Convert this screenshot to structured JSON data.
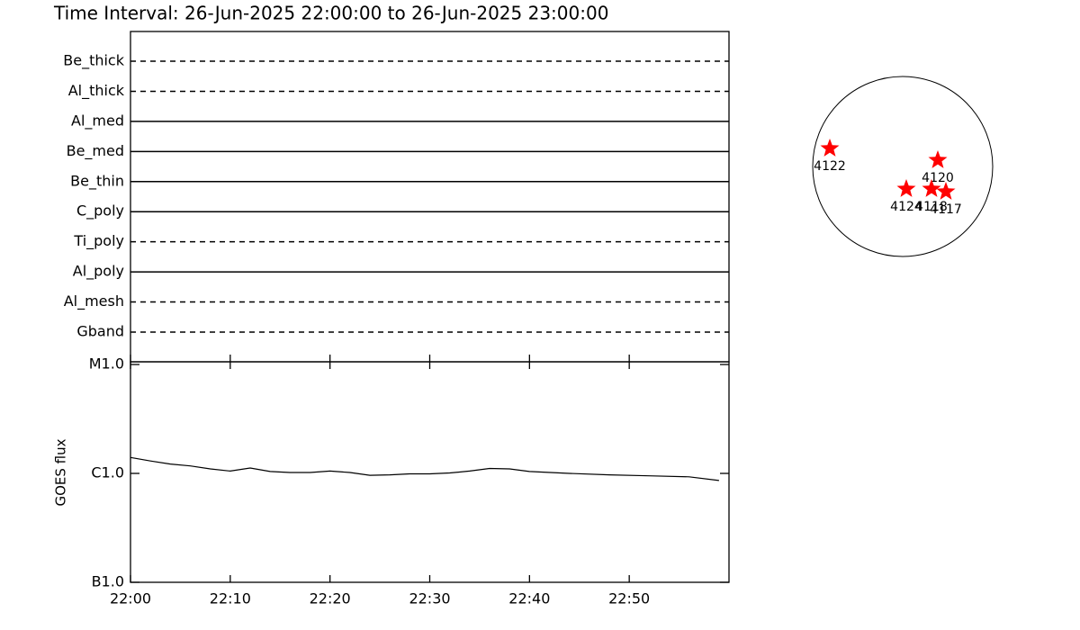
{
  "chart_data": [
    {
      "type": "timeline",
      "title": "Time Interval: 26-Jun-2025 22:00:00 to 26-Jun-2025 23:00:00",
      "categories": [
        "Be_thick",
        "Al_thick",
        "Al_med",
        "Be_med",
        "Be_thin",
        "C_poly",
        "Ti_poly",
        "Al_poly",
        "Al_mesh",
        "Gband"
      ],
      "line_styles": [
        "dashed",
        "dashed",
        "solid",
        "solid",
        "solid",
        "solid",
        "dashed",
        "solid",
        "dashed",
        "dashed"
      ]
    },
    {
      "type": "line",
      "y_label": "GOES flux",
      "log_scale": true,
      "color": "#000000",
      "x": [
        "22:00",
        "22:02",
        "22:04",
        "22:06",
        "22:08",
        "22:10",
        "22:12",
        "22:14",
        "22:16",
        "22:18",
        "22:20",
        "22:22",
        "22:24",
        "22:26",
        "22:28",
        "22:30",
        "22:32",
        "22:34",
        "22:36",
        "22:38",
        "22:40",
        "22:44",
        "22:48",
        "22:52",
        "22:56",
        "22:59"
      ],
      "values": [
        1.4e-06,
        1.3e-06,
        1.22e-06,
        1.17e-06,
        1.1e-06,
        1.05e-06,
        1.12e-06,
        1.04e-06,
        1.02e-06,
        1.02e-06,
        1.05e-06,
        1.02e-06,
        9.6e-07,
        9.7e-07,
        9.9e-07,
        9.9e-07,
        1.01e-06,
        1.05e-06,
        1.11e-06,
        1.1e-06,
        1.04e-06,
        1e-06,
        9.7e-07,
        9.5e-07,
        9.3e-07,
        8.6e-07
      ],
      "xlim": [
        "22:00",
        "23:00"
      ],
      "xticks": [
        "22:00",
        "22:10",
        "22:20",
        "22:30",
        "22:40",
        "22:50"
      ],
      "ylim": [
        1e-07,
        1e-05
      ],
      "yticks": [
        {
          "value": 1e-05,
          "label": "M1.0"
        },
        {
          "value": 1e-06,
          "label": "C1.0"
        },
        {
          "value": 1e-07,
          "label": "B1.0"
        }
      ]
    },
    {
      "type": "scatter",
      "color": "#ff0000",
      "labels": [
        "4122",
        "4120",
        "4124",
        "4118",
        "4117"
      ],
      "x": [
        -0.81,
        0.39,
        0.04,
        0.32,
        0.48
      ],
      "y": [
        0.2,
        0.07,
        -0.25,
        -0.25,
        -0.28
      ],
      "xlim": [
        -1,
        1
      ],
      "ylim": [
        -1,
        1
      ]
    }
  ]
}
